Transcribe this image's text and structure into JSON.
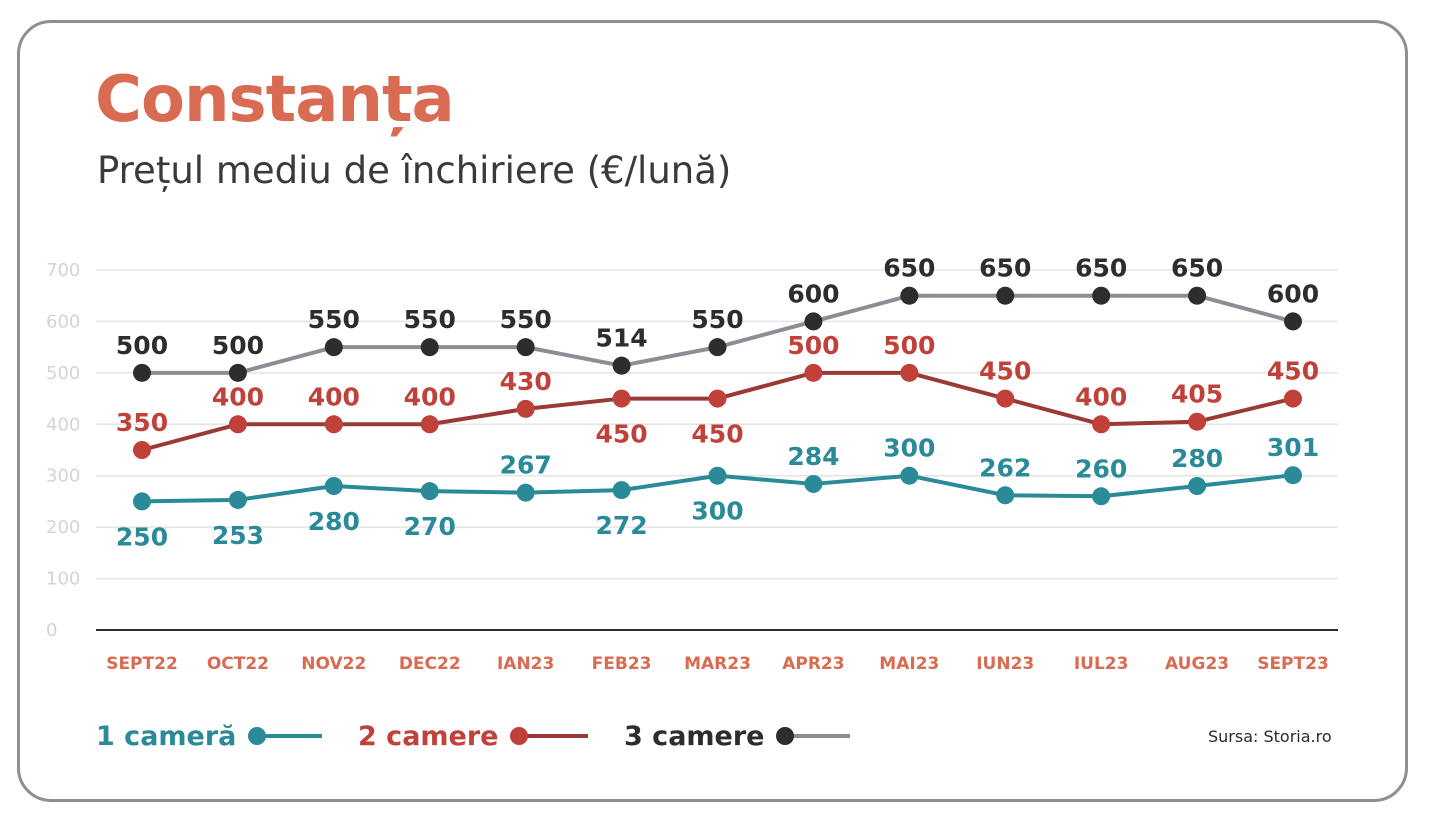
{
  "title": "Constanța",
  "subtitle": "Prețul mediu de închiriere (€/lună)",
  "source": "Sursa: Storia.ro",
  "chart_data": {
    "type": "line",
    "title": "Constanța",
    "subtitle": "Prețul mediu de închiriere (€/lună)",
    "categories": [
      "SEPT22",
      "OCT22",
      "NOV22",
      "DEC22",
      "IAN23",
      "FEB23",
      "MAR23",
      "APR23",
      "MAI23",
      "IUN23",
      "IUL23",
      "AUG23",
      "SEPT23"
    ],
    "yticks": [
      0,
      100,
      200,
      300,
      400,
      500,
      600,
      700
    ],
    "ylim": [
      0,
      700
    ],
    "grid": true,
    "legend_position": "bottom-left",
    "series": [
      {
        "name": "1 cameră",
        "color": "#2a8a98",
        "line_color": "#2a8a98",
        "values": [
          250,
          253,
          280,
          270,
          267,
          272,
          300,
          284,
          300,
          262,
          260,
          280,
          301
        ],
        "label_pos": [
          "below",
          "below",
          "below",
          "below",
          "above",
          "below",
          "below",
          "above",
          "above",
          "above",
          "above",
          "above",
          "above"
        ]
      },
      {
        "name": "2 camere",
        "color": "#c0413a",
        "line_color": "#9a3a35",
        "values": [
          350,
          400,
          400,
          400,
          430,
          450,
          450,
          500,
          500,
          450,
          400,
          405,
          450
        ],
        "label_pos": [
          "above",
          "above",
          "above",
          "above",
          "above",
          "below",
          "below",
          "above",
          "above",
          "above",
          "above",
          "above",
          "above"
        ]
      },
      {
        "name": "3 camere",
        "color": "#2d2d2d",
        "line_color": "#8e8d95",
        "values": [
          500,
          500,
          550,
          550,
          550,
          514,
          550,
          600,
          650,
          650,
          650,
          650,
          600
        ],
        "label_pos": [
          "above",
          "above",
          "above",
          "above",
          "above",
          "above",
          "above",
          "above",
          "above",
          "above",
          "above",
          "above",
          "above"
        ]
      }
    ]
  },
  "legend": {
    "items": [
      "1 cameră",
      "2 camere",
      "3 camere"
    ]
  }
}
